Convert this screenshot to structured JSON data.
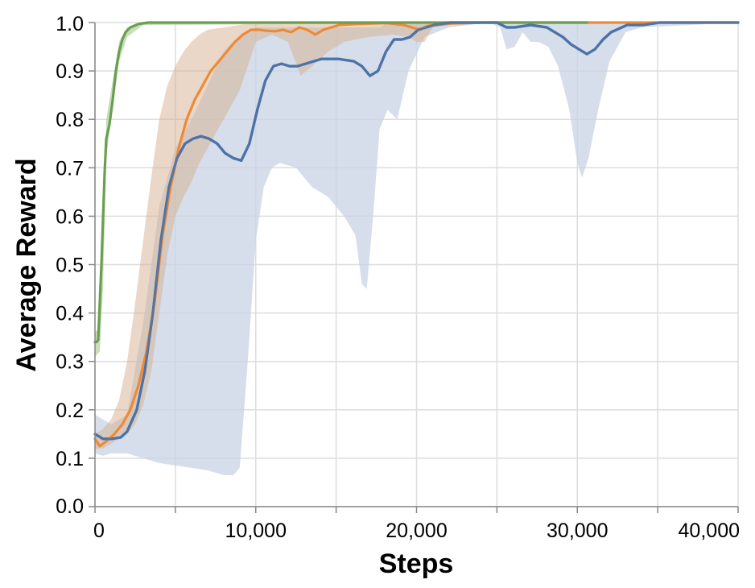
{
  "chart_data": {
    "type": "line",
    "xlabel": "Steps",
    "ylabel": "Average Reward",
    "xlim": [
      0,
      40000
    ],
    "ylim": [
      0,
      1
    ],
    "x_ticks": [
      0,
      10000,
      20000,
      30000,
      40000
    ],
    "x_tick_labels": [
      "0",
      "10,000",
      "20,000",
      "30,000",
      "40,000"
    ],
    "y_ticks": [
      0,
      0.1,
      0.2,
      0.3,
      0.4,
      0.5,
      0.6,
      0.7,
      0.8,
      0.9,
      1.0
    ],
    "y_tick_labels": [
      "0.0",
      "0.1",
      "0.2",
      "0.3",
      "0.4",
      "0.5",
      "0.6",
      "0.7",
      "0.8",
      "0.9",
      "1.0"
    ],
    "grid": true,
    "series": [
      {
        "color": "#4c72a6",
        "band_color": "#c7d3e3",
        "points": [
          [
            0,
            0.15
          ],
          [
            500,
            0.14
          ],
          [
            1000,
            0.14
          ],
          [
            1600,
            0.143
          ],
          [
            2000,
            0.155
          ],
          [
            2600,
            0.2
          ],
          [
            3100,
            0.28
          ],
          [
            3600,
            0.4
          ],
          [
            4100,
            0.55
          ],
          [
            4600,
            0.66
          ],
          [
            5100,
            0.72
          ],
          [
            5600,
            0.75
          ],
          [
            6100,
            0.76
          ],
          [
            6600,
            0.765
          ],
          [
            7100,
            0.76
          ],
          [
            7600,
            0.75
          ],
          [
            8100,
            0.73
          ],
          [
            8600,
            0.72
          ],
          [
            9100,
            0.715
          ],
          [
            9600,
            0.75
          ],
          [
            10100,
            0.82
          ],
          [
            10600,
            0.88
          ],
          [
            11100,
            0.91
          ],
          [
            11600,
            0.915
          ],
          [
            12100,
            0.91
          ],
          [
            12600,
            0.91
          ],
          [
            13100,
            0.915
          ],
          [
            13600,
            0.92
          ],
          [
            14100,
            0.925
          ],
          [
            15100,
            0.925
          ],
          [
            16100,
            0.92
          ],
          [
            16600,
            0.91
          ],
          [
            17100,
            0.89
          ],
          [
            17600,
            0.9
          ],
          [
            18100,
            0.94
          ],
          [
            18600,
            0.965
          ],
          [
            19100,
            0.965
          ],
          [
            19600,
            0.97
          ],
          [
            20100,
            0.985
          ],
          [
            21100,
            0.995
          ],
          [
            22100,
            1.0
          ],
          [
            25000,
            1.0
          ],
          [
            25600,
            0.99
          ],
          [
            26100,
            0.99
          ],
          [
            27100,
            0.995
          ],
          [
            28100,
            0.99
          ],
          [
            29100,
            0.97
          ],
          [
            29600,
            0.955
          ],
          [
            30100,
            0.945
          ],
          [
            30600,
            0.935
          ],
          [
            31100,
            0.945
          ],
          [
            31600,
            0.965
          ],
          [
            32100,
            0.98
          ],
          [
            33100,
            0.995
          ],
          [
            34100,
            0.995
          ],
          [
            35100,
            1.0
          ],
          [
            36100,
            1.0
          ],
          [
            37100,
            1.0
          ],
          [
            40000,
            1.0
          ]
        ],
        "band": [
          [
            0,
            0.19,
            0.11
          ],
          [
            500,
            0.18,
            0.105
          ],
          [
            1000,
            0.17,
            0.11
          ],
          [
            2000,
            0.19,
            0.11
          ],
          [
            3000,
            0.38,
            0.1
          ],
          [
            4000,
            0.62,
            0.09
          ],
          [
            5000,
            0.74,
            0.085
          ],
          [
            6000,
            0.8,
            0.08
          ],
          [
            7000,
            0.87,
            0.075
          ],
          [
            8000,
            0.94,
            0.065
          ],
          [
            8600,
            0.96,
            0.065
          ],
          [
            9000,
            0.97,
            0.08
          ],
          [
            9500,
            0.98,
            0.3
          ],
          [
            10000,
            0.99,
            0.55
          ],
          [
            10500,
            0.99,
            0.66
          ],
          [
            11000,
            0.99,
            0.7
          ],
          [
            11500,
            0.99,
            0.71
          ],
          [
            12500,
            0.99,
            0.7
          ],
          [
            13500,
            0.99,
            0.66
          ],
          [
            14500,
            0.99,
            0.64
          ],
          [
            15500,
            0.99,
            0.6
          ],
          [
            16200,
            0.99,
            0.56
          ],
          [
            16600,
            0.99,
            0.46
          ],
          [
            16900,
            0.99,
            0.45
          ],
          [
            17300,
            0.99,
            0.6
          ],
          [
            17700,
            0.99,
            0.78
          ],
          [
            18200,
            1.0,
            0.82
          ],
          [
            18800,
            1.0,
            0.8
          ],
          [
            19500,
            1.0,
            0.9
          ],
          [
            20500,
            1.0,
            0.97
          ],
          [
            22000,
            1.0,
            0.99
          ],
          [
            24500,
            1.0,
            1.0
          ],
          [
            25200,
            1.0,
            0.99
          ],
          [
            25600,
            1.0,
            0.945
          ],
          [
            26100,
            1.0,
            0.95
          ],
          [
            26600,
            1.0,
            0.98
          ],
          [
            27100,
            1.0,
            0.96
          ],
          [
            27600,
            1.0,
            0.96
          ],
          [
            28200,
            1.0,
            0.95
          ],
          [
            28800,
            1.0,
            0.91
          ],
          [
            29500,
            1.0,
            0.82
          ],
          [
            30000,
            1.0,
            0.71
          ],
          [
            30300,
            1.0,
            0.68
          ],
          [
            30700,
            1.0,
            0.72
          ],
          [
            31300,
            1.0,
            0.82
          ],
          [
            32000,
            1.0,
            0.92
          ],
          [
            33000,
            1.0,
            0.98
          ],
          [
            34000,
            1.0,
            0.99
          ],
          [
            40000,
            1.0,
            1.0
          ]
        ]
      },
      {
        "color": "#ee8a36",
        "band_color": "#d7b08f",
        "band_opacity": 0.5,
        "points": [
          [
            0,
            0.14
          ],
          [
            300,
            0.125
          ],
          [
            700,
            0.135
          ],
          [
            1200,
            0.15
          ],
          [
            1700,
            0.17
          ],
          [
            2200,
            0.2
          ],
          [
            2700,
            0.25
          ],
          [
            3200,
            0.32
          ],
          [
            3700,
            0.42
          ],
          [
            4200,
            0.56
          ],
          [
            4700,
            0.66
          ],
          [
            5200,
            0.74
          ],
          [
            5700,
            0.8
          ],
          [
            6200,
            0.84
          ],
          [
            6700,
            0.87
          ],
          [
            7200,
            0.9
          ],
          [
            7700,
            0.92
          ],
          [
            8200,
            0.94
          ],
          [
            8700,
            0.96
          ],
          [
            9200,
            0.975
          ],
          [
            9700,
            0.985
          ],
          [
            10200,
            0.985
          ],
          [
            10700,
            0.983
          ],
          [
            11200,
            0.982
          ],
          [
            11700,
            0.985
          ],
          [
            12200,
            0.98
          ],
          [
            12700,
            0.99
          ],
          [
            13200,
            0.985
          ],
          [
            13700,
            0.975
          ],
          [
            14200,
            0.985
          ],
          [
            14700,
            0.99
          ],
          [
            15200,
            0.995
          ],
          [
            16200,
            0.997
          ],
          [
            17200,
            0.998
          ],
          [
            18200,
            0.999
          ],
          [
            19200,
            0.995
          ],
          [
            19700,
            0.99
          ],
          [
            20200,
            0.985
          ],
          [
            20700,
            0.993
          ],
          [
            21200,
            0.995
          ],
          [
            22200,
            0.998
          ],
          [
            24200,
            1.0
          ],
          [
            40000,
            1.0
          ]
        ],
        "band": [
          [
            0,
            0.15,
            0.12
          ],
          [
            500,
            0.16,
            0.12
          ],
          [
            1000,
            0.18,
            0.13
          ],
          [
            1500,
            0.22,
            0.14
          ],
          [
            2000,
            0.3,
            0.15
          ],
          [
            2500,
            0.42,
            0.17
          ],
          [
            3000,
            0.55,
            0.21
          ],
          [
            3500,
            0.68,
            0.28
          ],
          [
            4000,
            0.8,
            0.4
          ],
          [
            4500,
            0.87,
            0.52
          ],
          [
            5000,
            0.91,
            0.6
          ],
          [
            5500,
            0.94,
            0.64
          ],
          [
            6000,
            0.96,
            0.67
          ],
          [
            6500,
            0.975,
            0.71
          ],
          [
            7000,
            0.985,
            0.74
          ],
          [
            8000,
            0.99,
            0.8
          ],
          [
            9000,
            0.995,
            0.86
          ],
          [
            10000,
            1.0,
            0.96
          ],
          [
            11000,
            1.0,
            0.975
          ],
          [
            12000,
            1.0,
            0.96
          ],
          [
            12800,
            1.0,
            0.89
          ],
          [
            13500,
            1.0,
            0.91
          ],
          [
            14500,
            1.0,
            0.94
          ],
          [
            15500,
            1.0,
            0.96
          ],
          [
            17000,
            1.0,
            0.97
          ],
          [
            18500,
            1.0,
            0.975
          ],
          [
            19500,
            1.0,
            0.97
          ],
          [
            20000,
            1.0,
            0.96
          ],
          [
            20500,
            1.0,
            0.96
          ],
          [
            21000,
            1.0,
            0.99
          ],
          [
            23000,
            1.0,
            1.0
          ],
          [
            40000,
            1.0,
            1.0
          ]
        ]
      },
      {
        "color": "#6aa04d",
        "band_color": "#b7d3a5",
        "points": [
          [
            0,
            0.34
          ],
          [
            100,
            0.34
          ],
          [
            200,
            0.345
          ],
          [
            400,
            0.5
          ],
          [
            600,
            0.69
          ],
          [
            700,
            0.76
          ],
          [
            900,
            0.79
          ],
          [
            1100,
            0.84
          ],
          [
            1300,
            0.9
          ],
          [
            1500,
            0.94
          ],
          [
            1700,
            0.965
          ],
          [
            1900,
            0.98
          ],
          [
            2200,
            0.99
          ],
          [
            2700,
            0.997
          ],
          [
            3300,
            1.0
          ],
          [
            30600,
            1.0
          ]
        ],
        "band": [
          [
            0,
            0.36,
            0.31
          ],
          [
            300,
            0.37,
            0.32
          ],
          [
            500,
            0.55,
            0.45
          ],
          [
            700,
            0.8,
            0.72
          ],
          [
            1000,
            0.86,
            0.8
          ],
          [
            1500,
            0.96,
            0.92
          ],
          [
            2000,
            0.99,
            0.97
          ],
          [
            3000,
            1.0,
            0.995
          ],
          [
            30600,
            1.0,
            1.0
          ]
        ]
      }
    ]
  }
}
